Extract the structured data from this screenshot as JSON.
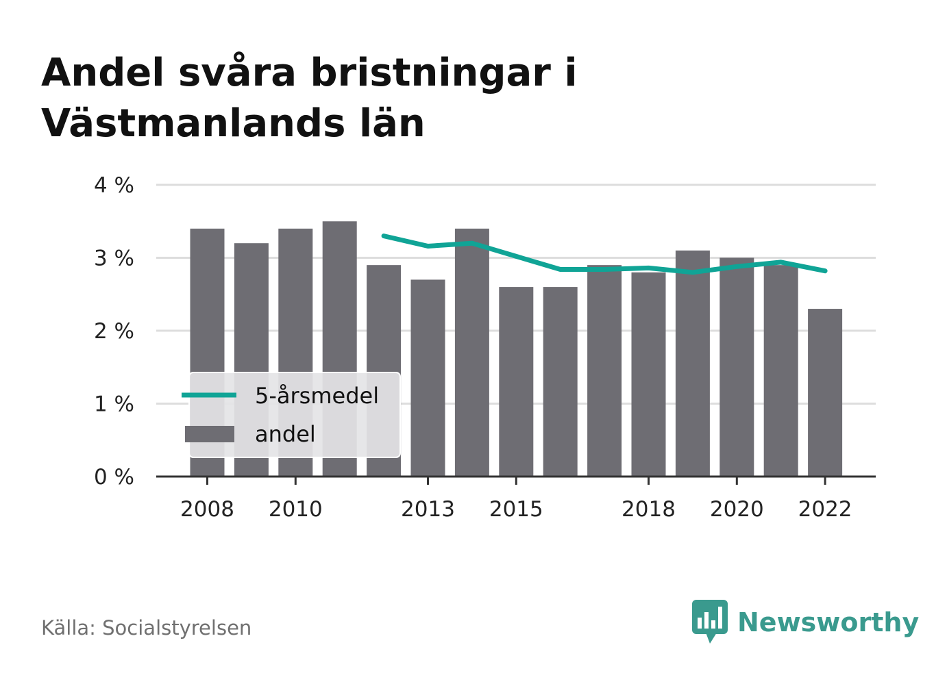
{
  "header": {
    "title_line1": "Andel svåra bristningar i",
    "title_line2": "Västmanlands län"
  },
  "footer": {
    "source": "Källa: Socialstyrelsen",
    "logo_text": "Newsworthy"
  },
  "colors": {
    "bar": "#6e6d73",
    "line": "#10a496",
    "grid": "#dddddd",
    "axis": "#333333",
    "legend_bg": "#e4e4e6",
    "brand": "#3a9a8e"
  },
  "chart_data": {
    "type": "bar",
    "categories": [
      2008,
      2009,
      2010,
      2011,
      2012,
      2013,
      2014,
      2015,
      2016,
      2017,
      2018,
      2019,
      2020,
      2021,
      2022
    ],
    "x_tick_labels": [
      "2008",
      "2010",
      "2013",
      "2015",
      "2018",
      "2020",
      "2022"
    ],
    "y_tick_values": [
      0,
      1,
      2,
      3,
      4
    ],
    "y_tick_labels": [
      "0 %",
      "1 %",
      "2 %",
      "3 %",
      "4 %"
    ],
    "ylim": [
      0,
      4
    ],
    "grid": true,
    "legend_position": "bottom-left",
    "series": [
      {
        "name": "andel",
        "type": "bar",
        "values": [
          3.4,
          3.2,
          3.4,
          3.5,
          2.9,
          2.7,
          3.4,
          2.6,
          2.6,
          2.9,
          2.8,
          3.1,
          3.0,
          2.9,
          2.3
        ]
      },
      {
        "name": "5-årsmedel",
        "type": "line",
        "values": [
          null,
          null,
          null,
          null,
          3.3,
          3.16,
          3.2,
          3.02,
          2.84,
          2.84,
          2.86,
          2.8,
          2.88,
          2.94,
          2.82
        ]
      }
    ],
    "legend": [
      "5-årsmedel",
      "andel"
    ]
  }
}
